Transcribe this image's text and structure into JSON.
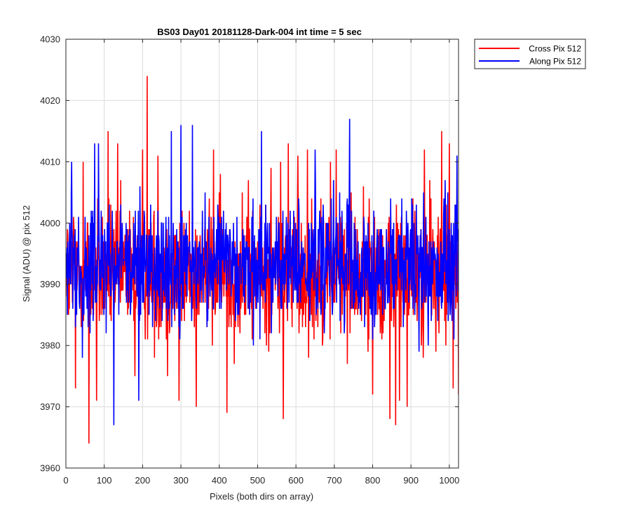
{
  "chart_data": {
    "type": "line",
    "title": "BS03 Day01 20181128-Dark-004 int time = 5 sec",
    "xlabel": "Pixels (both dirs on array)",
    "ylabel": "Signal (ADU) @ pix 512",
    "xlim": [
      0,
      1024
    ],
    "ylim": [
      3960,
      4030
    ],
    "xticks": [
      0,
      100,
      200,
      300,
      400,
      500,
      600,
      700,
      800,
      900,
      1000
    ],
    "yticks": [
      3960,
      3970,
      3980,
      3990,
      4000,
      4010,
      4020,
      4030
    ],
    "grid": true,
    "legend_position": "outside top-right",
    "series": [
      {
        "name": "Cross Pix 512",
        "color": "#ff0000",
        "n_points": 1024,
        "mean": 3992,
        "noise_std": 5.5,
        "spikes": [
          [
            0,
            3988
          ],
          [
            25,
            3973
          ],
          [
            45,
            4010
          ],
          [
            60,
            3964
          ],
          [
            80,
            3971
          ],
          [
            110,
            4015
          ],
          [
            135,
            4013
          ],
          [
            180,
            3975
          ],
          [
            200,
            4012
          ],
          [
            212,
            4024
          ],
          [
            240,
            4011
          ],
          [
            265,
            3975
          ],
          [
            295,
            3971
          ],
          [
            340,
            3970
          ],
          [
            385,
            4012
          ],
          [
            420,
            3969
          ],
          [
            460,
            4005
          ],
          [
            535,
            4009
          ],
          [
            560,
            4010
          ],
          [
            567,
            3968
          ],
          [
            580,
            4013
          ],
          [
            605,
            4011
          ],
          [
            630,
            4012
          ],
          [
            690,
            4010
          ],
          [
            705,
            4012
          ],
          [
            800,
            3972
          ],
          [
            845,
            3968
          ],
          [
            860,
            3967
          ],
          [
            870,
            3971
          ],
          [
            890,
            3970
          ],
          [
            935,
            4012
          ],
          [
            980,
            4015
          ],
          [
            1000,
            4013
          ],
          [
            1010,
            3973
          ],
          [
            1024,
            3972
          ]
        ]
      },
      {
        "name": "Along Pix 512",
        "color": "#0000ff",
        "n_points": 1024,
        "mean": 3993,
        "noise_std": 5.0,
        "spikes": [
          [
            5,
            3997
          ],
          [
            15,
            4010
          ],
          [
            75,
            4013
          ],
          [
            85,
            4013
          ],
          [
            125,
            3967
          ],
          [
            190,
            3971
          ],
          [
            275,
            4015
          ],
          [
            300,
            4016
          ],
          [
            330,
            4016
          ],
          [
            510,
            4015
          ],
          [
            650,
            4012
          ],
          [
            740,
            4017
          ],
          [
            1020,
            4011
          ]
        ]
      }
    ]
  }
}
